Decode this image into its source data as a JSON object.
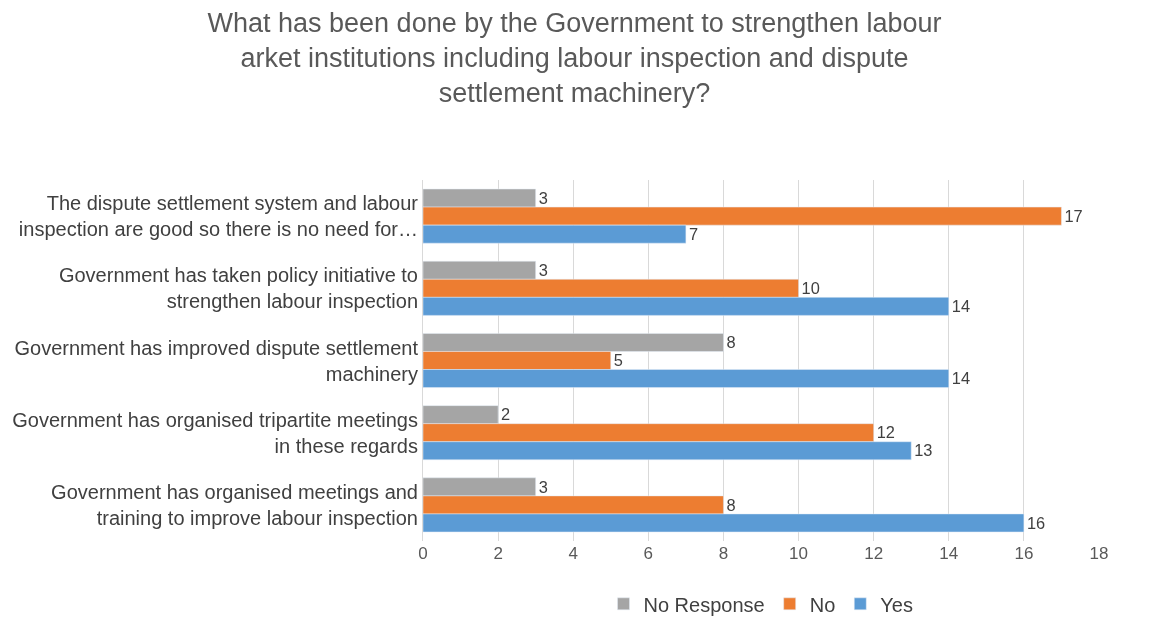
{
  "chart_data": {
    "type": "bar",
    "orientation": "horizontal",
    "title": "What has been done by the Government to strengthen labour arket institutions including labour inspection and dispute settlement machinery?",
    "categories": [
      "The dispute settlement system and labour inspection are good so there is no need for…",
      "Government has taken policy initiative to strengthen labour inspection",
      "Government has improved dispute settlement machinery",
      "Government has organised tripartite meetings in these regards",
      "Government has organised meetings and training to improve labour inspection"
    ],
    "series": [
      {
        "name": "No Response",
        "color": "#a5a5a5",
        "values": [
          3,
          3,
          8,
          2,
          3
        ]
      },
      {
        "name": "No",
        "color": "#ed7d31",
        "values": [
          17,
          10,
          5,
          12,
          8
        ]
      },
      {
        "name": "Yes",
        "color": "#5b9bd5",
        "values": [
          7,
          14,
          14,
          13,
          16
        ]
      }
    ],
    "xlim": [
      0,
      18
    ],
    "xticks": [
      0,
      2,
      4,
      6,
      8,
      10,
      12,
      14,
      16,
      18
    ],
    "grid": "x",
    "legend": "bottom",
    "data_labels": true
  }
}
